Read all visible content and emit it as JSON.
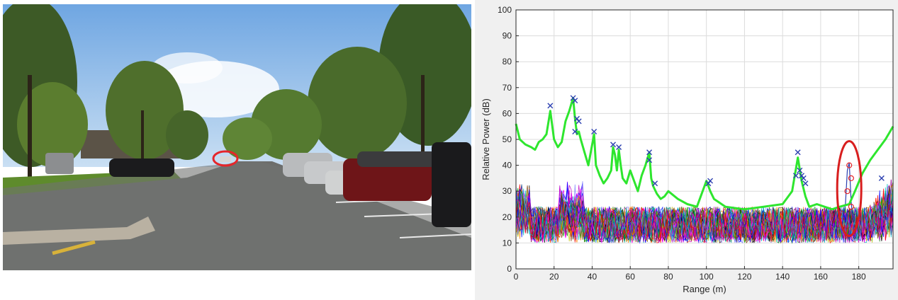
{
  "photo": {
    "description_hidden": "",
    "sky_color": "#8fb8e6",
    "highlight_color": "#e5262b"
  },
  "chart_data": {
    "type": "line",
    "xlabel": "Range (m)",
    "ylabel": "Relative Power (dB)",
    "xlim": [
      0,
      198
    ],
    "ylim": [
      0,
      100
    ],
    "xticks": [
      0,
      20,
      40,
      60,
      80,
      100,
      120,
      140,
      160,
      180
    ],
    "yticks": [
      0,
      10,
      20,
      30,
      40,
      50,
      60,
      70,
      80,
      90,
      100
    ],
    "grid": true,
    "series": [
      {
        "color": "#2ee62e",
        "x": [
          0,
          2,
          5,
          8,
          10,
          12,
          14,
          16,
          18,
          20,
          22,
          24,
          26,
          28,
          30,
          31,
          32,
          33,
          34,
          36,
          38,
          40,
          41,
          42,
          44,
          46,
          48,
          50,
          51,
          52,
          53,
          54,
          55,
          56,
          58,
          60,
          62,
          64,
          66,
          68,
          70,
          71,
          72,
          74,
          76,
          78,
          80,
          85,
          90,
          95,
          100,
          102,
          104,
          110,
          120,
          130,
          140,
          145,
          148,
          150,
          152,
          154,
          158,
          162,
          166,
          170,
          175,
          178,
          182,
          186,
          190,
          194,
          198
        ],
        "y": [
          56,
          50,
          48,
          47,
          46,
          49,
          50,
          52,
          61,
          50,
          47,
          49,
          57,
          61,
          66,
          58,
          52,
          53,
          50,
          45,
          40,
          48,
          52,
          40,
          36,
          33,
          35,
          38,
          47,
          44,
          38,
          46,
          40,
          35,
          33,
          38,
          34,
          30,
          36,
          40,
          45,
          35,
          32,
          29,
          27,
          28,
          30,
          27,
          25,
          24,
          34,
          30,
          27,
          24,
          23,
          24,
          25,
          30,
          43,
          34,
          28,
          24,
          25,
          24,
          23,
          24,
          25,
          30,
          37,
          42,
          46,
          50,
          55
        ]
      }
    ],
    "noise_band": {
      "min": 5,
      "max": 28,
      "lines": 40,
      "colors": [
        "#0000ff",
        "#ff0000",
        "#00bfbf",
        "#bf00bf",
        "#bfbf00",
        "#000000",
        "#7f7fff",
        "#ff7f00",
        "#00a000",
        "#ff00ff",
        "#004080",
        "#804000"
      ]
    },
    "markers": {
      "x_marks": [
        [
          18,
          63
        ],
        [
          30,
          66
        ],
        [
          31,
          65
        ],
        [
          32,
          58
        ],
        [
          33,
          57
        ],
        [
          31,
          53
        ],
        [
          41,
          53
        ],
        [
          51,
          48
        ],
        [
          54,
          47
        ],
        [
          70,
          45
        ],
        [
          70,
          42
        ],
        [
          73,
          33
        ],
        [
          102,
          34
        ],
        [
          101,
          33
        ],
        [
          148,
          45
        ],
        [
          149,
          38
        ],
        [
          150,
          36
        ],
        [
          151,
          35
        ],
        [
          152,
          33
        ],
        [
          147,
          36
        ],
        [
          192,
          35
        ]
      ],
      "x_color": "#2b3fb0",
      "o_marks": [
        [
          175,
          40
        ],
        [
          176,
          35
        ],
        [
          174,
          30
        ],
        [
          176,
          24
        ]
      ],
      "o_color": "#e5262b"
    },
    "highlight_ellipse": {
      "x": 175,
      "y": 31,
      "color": "#d81e1e"
    }
  }
}
